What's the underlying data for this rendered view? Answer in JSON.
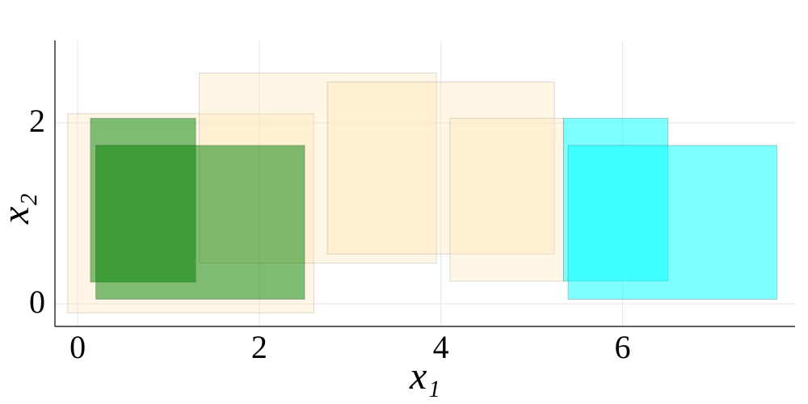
{
  "chart_data": {
    "type": "rectangles",
    "xlabel": "x₁",
    "ylabel": "x₂",
    "xlim": [
      -0.25,
      7.9
    ],
    "ylim": [
      -0.25,
      2.91
    ],
    "xticks": [
      0,
      2,
      4,
      6
    ],
    "yticks": [
      0,
      2
    ],
    "grid": true,
    "rects": [
      {
        "x": [
          -0.11,
          2.6
        ],
        "y": [
          -0.1,
          2.1
        ],
        "color": "#ffe4b5",
        "opacity": 0.35
      },
      {
        "x": [
          1.34,
          3.95
        ],
        "y": [
          0.45,
          2.55
        ],
        "color": "#ffe4b5",
        "opacity": 0.35
      },
      {
        "x": [
          2.75,
          5.25
        ],
        "y": [
          0.55,
          2.45
        ],
        "color": "#ffe4b5",
        "opacity": 0.35
      },
      {
        "x": [
          4.1,
          5.35
        ],
        "y": [
          0.25,
          2.05
        ],
        "color": "#ffe4b5",
        "opacity": 0.35
      },
      {
        "x": [
          0.14,
          1.3
        ],
        "y": [
          0.24,
          2.05
        ],
        "color": "#008000",
        "opacity": 0.5
      },
      {
        "x": [
          0.2,
          2.5
        ],
        "y": [
          0.05,
          1.75
        ],
        "color": "#008000",
        "opacity": 0.5
      },
      {
        "x": [
          5.35,
          6.5
        ],
        "y": [
          0.25,
          2.05
        ],
        "color": "#00ffff",
        "opacity": 0.5
      },
      {
        "x": [
          5.4,
          7.7
        ],
        "y": [
          0.05,
          1.75
        ],
        "color": "#00ffff",
        "opacity": 0.5
      }
    ]
  }
}
